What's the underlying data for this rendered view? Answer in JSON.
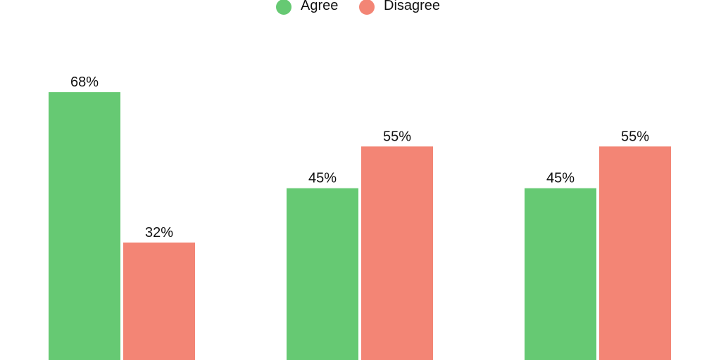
{
  "chart_data": {
    "type": "bar",
    "categories": [
      null,
      null,
      null
    ],
    "series": [
      {
        "name": "Agree",
        "color": "#66c973",
        "values": [
          68,
          45,
          45
        ],
        "value_labels": [
          "68%",
          "45%",
          "45%"
        ]
      },
      {
        "name": "Disagree",
        "color": "#f38575",
        "values": [
          32,
          55,
          55
        ],
        "value_labels": [
          "32%",
          "55%",
          "55%"
        ]
      }
    ],
    "legend": "top"
  }
}
